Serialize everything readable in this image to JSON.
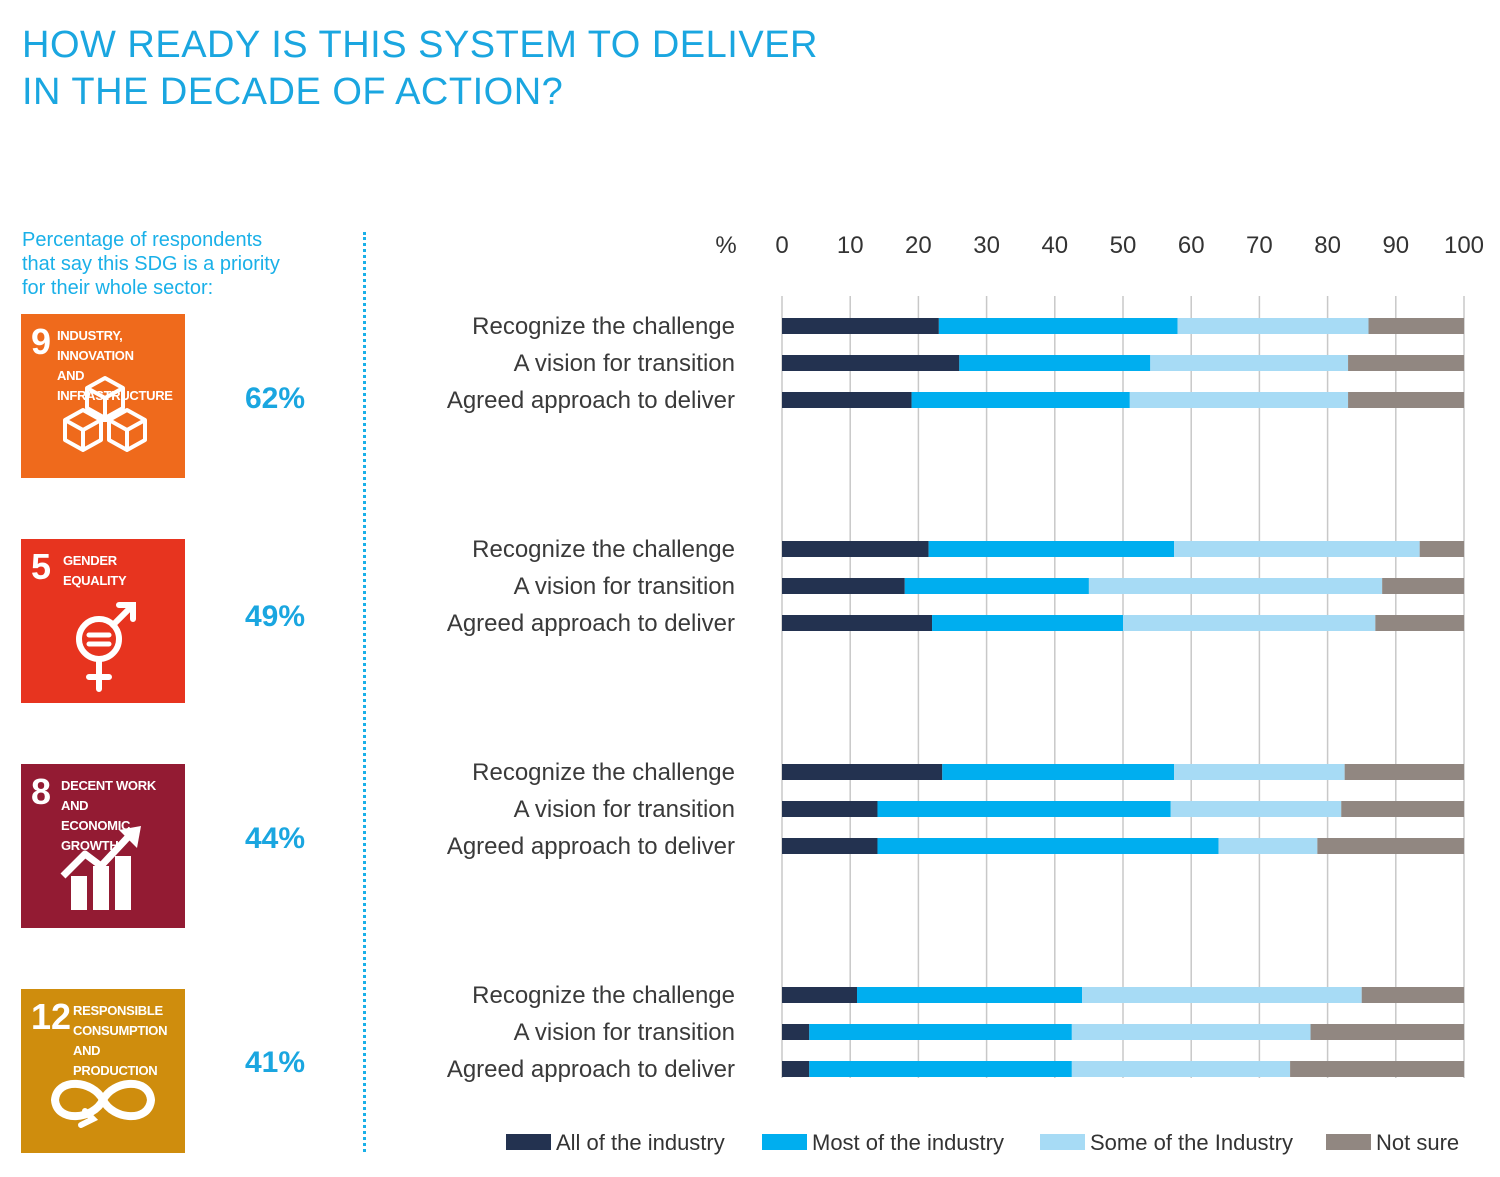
{
  "title": {
    "line1": "HOW READY IS THIS SYSTEM TO DELIVER",
    "line2": "IN THE DECADE OF ACTION?"
  },
  "subtitle": {
    "line1": "Percentage of respondents",
    "line2": "that say this SDG is a priority",
    "line3": "for their whole sector:"
  },
  "sdgs": [
    {
      "number": "9",
      "label_line1": "Industry, Innovation",
      "label_line2": "and Infrastructure",
      "label_line3": "",
      "color": "#ef6a1c",
      "icon": "blocks-icon",
      "percent": "62%"
    },
    {
      "number": "5",
      "label_line1": "Gender",
      "label_line2": "Equality",
      "label_line3": "",
      "color": "#e7341f",
      "icon": "gender-equality-icon",
      "percent": "49%"
    },
    {
      "number": "8",
      "label_line1": "Decent work and",
      "label_line2": "economic growth",
      "label_line3": "",
      "color": "#931b33",
      "icon": "growth-chart-icon",
      "percent": "44%"
    },
    {
      "number": "12",
      "label_line1": "Responsible",
      "label_line2": "consumption",
      "label_line3": "and production",
      "color": "#cf8d0d",
      "icon": "infinity-icon",
      "percent": "41%"
    }
  ],
  "chart_data": {
    "type": "bar",
    "orientation": "horizontal",
    "stacked": true,
    "xlabel": "%",
    "xlim": [
      0,
      100
    ],
    "xticks": [
      0,
      10,
      20,
      30,
      40,
      50,
      60,
      70,
      80,
      90,
      100
    ],
    "grid": true,
    "categories": [
      "Recognize the challenge",
      "A vision for transition",
      "Agreed approach to deliver"
    ],
    "series_colors": [
      "#233250",
      "#00aeef",
      "#a7dbf5",
      "#918781"
    ],
    "legend": [
      "All of the industry",
      "Most of the industry",
      "Some of the Industry",
      "Not sure"
    ],
    "legend_position": "bottom",
    "groups": [
      {
        "sdg": "9",
        "rows": [
          [
            23,
            35,
            28,
            14
          ],
          [
            26,
            28,
            29,
            17
          ],
          [
            19,
            32,
            32,
            17
          ]
        ]
      },
      {
        "sdg": "5",
        "rows": [
          [
            21.5,
            36,
            36,
            6.5
          ],
          [
            18,
            27,
            43,
            12
          ],
          [
            22,
            28,
            37,
            13
          ]
        ]
      },
      {
        "sdg": "8",
        "rows": [
          [
            23.5,
            34,
            25,
            17.5
          ],
          [
            14,
            43,
            25,
            18
          ],
          [
            14,
            50,
            14.5,
            21.5
          ]
        ]
      },
      {
        "sdg": "12",
        "rows": [
          [
            11,
            33,
            41,
            15
          ],
          [
            4,
            38.5,
            35,
            22.5
          ],
          [
            4,
            38.5,
            32,
            25.5
          ]
        ]
      }
    ]
  }
}
